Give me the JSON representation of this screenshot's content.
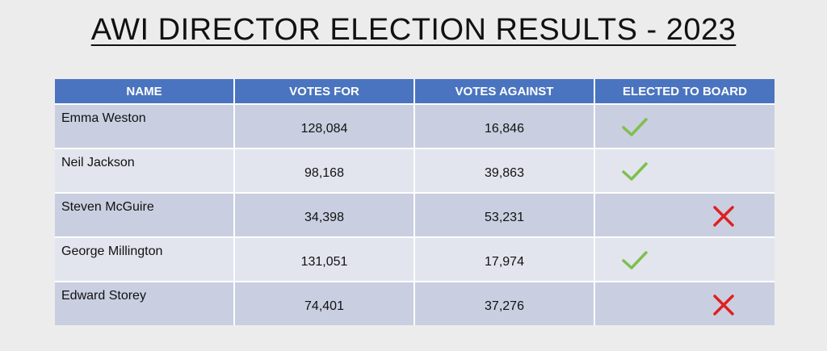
{
  "title": "AWI DIRECTOR ELECTION RESULTS - 2023",
  "table": {
    "headers": [
      "NAME",
      "VOTES FOR",
      "VOTES AGAINST",
      "ELECTED TO BOARD"
    ],
    "rows": [
      {
        "name": "Emma Weston",
        "votes_for": "128,084",
        "votes_against": "16,846",
        "elected": true
      },
      {
        "name": "Neil Jackson",
        "votes_for": "98,168",
        "votes_against": "39,863",
        "elected": true
      },
      {
        "name": "Steven McGuire",
        "votes_for": "34,398",
        "votes_against": "53,231",
        "elected": false
      },
      {
        "name": "George Millington",
        "votes_for": "131,051",
        "votes_against": "17,974",
        "elected": true
      },
      {
        "name": "Edward Storey",
        "votes_for": "74,401",
        "votes_against": "37,276",
        "elected": false
      }
    ]
  },
  "colors": {
    "header_bg": "#4a74bf",
    "row_dark": "#c9cfe0",
    "row_light": "#e2e5ee",
    "check": "#7fbf4d",
    "cross": "#e02020"
  },
  "icons": {
    "elected_true": "check-icon",
    "elected_false": "cross-icon"
  }
}
